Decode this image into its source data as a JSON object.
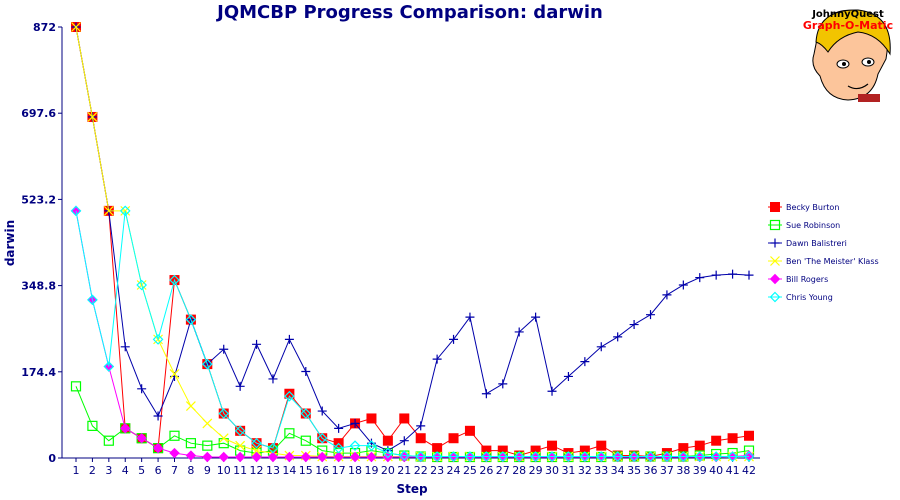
{
  "chart_data": {
    "type": "line",
    "title": "JQMCBP Progress Comparison: darwin",
    "xlabel": "Step",
    "ylabel": "darwin",
    "ylim": [
      0,
      872
    ],
    "yticks": [
      "0",
      "174.4",
      "348.8",
      "523.2",
      "697.6",
      "872"
    ],
    "categories": [
      "1",
      "2",
      "3",
      "4",
      "5",
      "6",
      "7",
      "8",
      "9",
      "10",
      "11",
      "12",
      "13",
      "14",
      "15",
      "16",
      "17",
      "18",
      "19",
      "20",
      "21",
      "22",
      "23",
      "24",
      "25",
      "26",
      "27",
      "28",
      "29",
      "30",
      "31",
      "32",
      "33",
      "34",
      "35",
      "36",
      "37",
      "38",
      "39",
      "40",
      "41",
      "42"
    ],
    "legend_position": "right",
    "grid": false,
    "series": [
      {
        "name": "Becky Burton",
        "color": "#ff0000",
        "marker": "square-filled",
        "values": [
          872,
          690,
          500,
          60,
          40,
          20,
          360,
          280,
          190,
          90,
          55,
          30,
          20,
          130,
          90,
          40,
          30,
          70,
          80,
          35,
          80,
          40,
          20,
          40,
          55,
          15,
          15,
          5,
          15,
          25,
          10,
          15,
          25,
          5,
          5,
          3,
          10,
          20,
          25,
          35,
          40,
          45
        ]
      },
      {
        "name": "Sue Robinson",
        "color": "#00ff00",
        "marker": "square-open",
        "values": [
          145,
          65,
          35,
          60,
          40,
          20,
          45,
          30,
          25,
          30,
          15,
          10,
          15,
          50,
          35,
          15,
          10,
          10,
          15,
          10,
          5,
          3,
          2,
          2,
          2,
          2,
          2,
          2,
          2,
          2,
          2,
          2,
          2,
          3,
          3,
          3,
          3,
          3,
          5,
          8,
          10,
          15
        ]
      },
      {
        "name": "Dawn Balistreri",
        "color": "#0000aa",
        "marker": "plus",
        "values": [
          872,
          690,
          500,
          225,
          140,
          85,
          165,
          280,
          190,
          220,
          145,
          230,
          160,
          240,
          175,
          95,
          60,
          70,
          30,
          15,
          35,
          65,
          200,
          240,
          285,
          130,
          150,
          255,
          285,
          135,
          165,
          195,
          225,
          245,
          270,
          290,
          330,
          350,
          365,
          370,
          372,
          370
        ]
      },
      {
        "name": "Ben 'The Meister' Klass",
        "color": "#ffff00",
        "marker": "x",
        "values": [
          872,
          690,
          500,
          500,
          350,
          240,
          170,
          105,
          70,
          40,
          25,
          15,
          10,
          5,
          5,
          3,
          3,
          3,
          3,
          3,
          3,
          3,
          3,
          3,
          3,
          3,
          3,
          3,
          3,
          3,
          3,
          3,
          3,
          3,
          3,
          3,
          3,
          3,
          3,
          3,
          3,
          3
        ]
      },
      {
        "name": "Bill Rogers",
        "color": "#ff00ff",
        "marker": "diamond",
        "values": [
          500,
          320,
          185,
          60,
          40,
          20,
          10,
          5,
          2,
          2,
          2,
          2,
          2,
          2,
          2,
          2,
          2,
          2,
          2,
          2,
          2,
          2,
          2,
          2,
          2,
          2,
          2,
          2,
          2,
          2,
          2,
          2,
          2,
          2,
          2,
          2,
          2,
          2,
          2,
          2,
          3,
          5
        ]
      },
      {
        "name": "Chris Young",
        "color": "#00ffff",
        "marker": "diamond-open",
        "values": [
          500,
          320,
          185,
          500,
          350,
          240,
          360,
          280,
          190,
          90,
          55,
          30,
          20,
          125,
          90,
          40,
          20,
          25,
          25,
          10,
          5,
          3,
          3,
          3,
          3,
          3,
          3,
          3,
          3,
          3,
          3,
          3,
          3,
          3,
          3,
          3,
          3,
          3,
          3,
          3,
          3,
          3
        ]
      }
    ]
  },
  "logo": {
    "line1": "JohnnyQuest",
    "line2": "Graph-O-Matic"
  }
}
